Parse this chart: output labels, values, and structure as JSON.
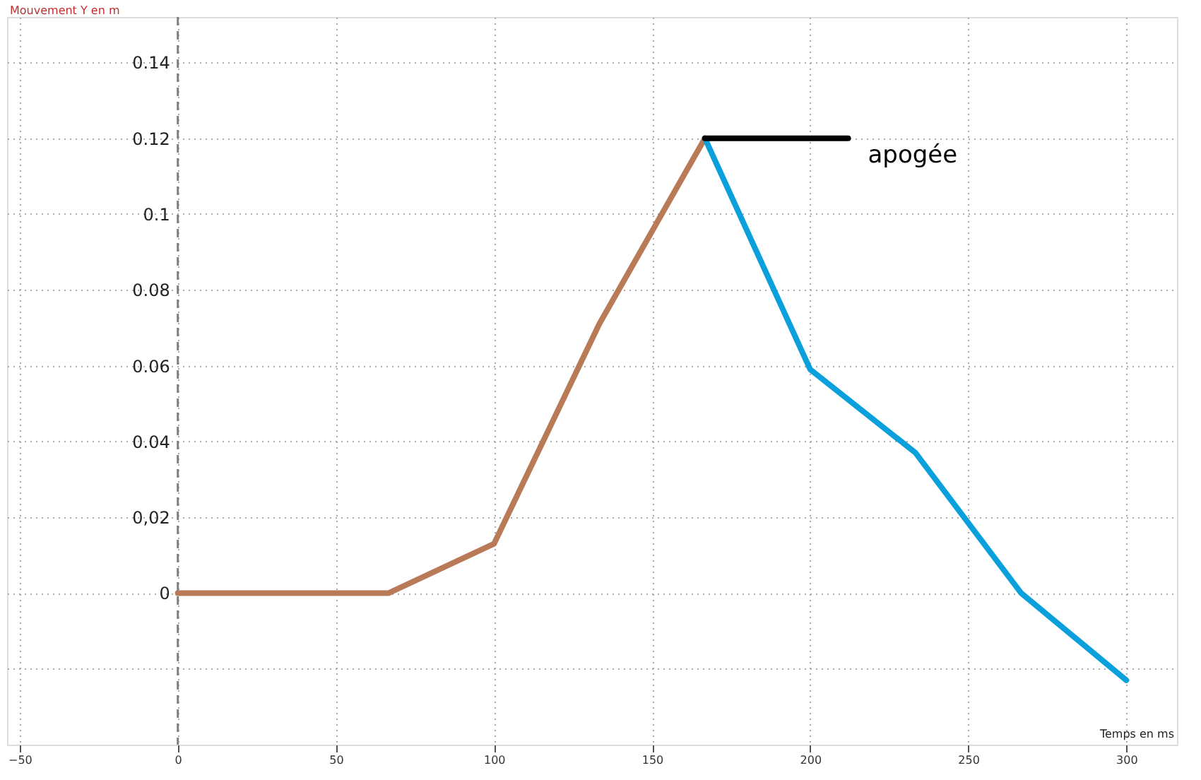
{
  "chart_data": {
    "type": "line",
    "xlabel": "Temps en ms",
    "ylabel": "Mouvement Y en m",
    "xlim": [
      -54,
      316
    ],
    "ylim": [
      -0.04,
      0.152
    ],
    "xticks": [
      -50,
      0,
      50,
      100,
      150,
      200,
      250,
      300
    ],
    "yticks": [
      {
        "value": -0.02,
        "label": null
      },
      0,
      {
        "value": 0.02,
        "label": "0,02"
      },
      0.04,
      0.06,
      0.08,
      0.1,
      0.12,
      0.14
    ],
    "grid": true,
    "marker": "none",
    "line_style": "solid",
    "ref_lines": [
      {
        "axis": "x",
        "value": 0,
        "color": "#808080",
        "line_style": "dashed"
      }
    ],
    "series": [
      {
        "color": "#b87a57",
        "x": [
          0,
          33.3,
          66.7,
          100,
          133.3,
          166.7
        ],
        "values": [
          0,
          0,
          0,
          0.013,
          0.071,
          0.12
        ]
      },
      {
        "color": "#0aa0dc",
        "x": [
          166.7,
          200,
          233.3,
          266.7,
          300
        ],
        "values": [
          0.12,
          0.059,
          0.037,
          0,
          -0.023
        ]
      },
      {
        "color": "#000000",
        "x": [
          166.7,
          212
        ],
        "values": [
          0.12,
          0.12
        ]
      }
    ],
    "annotations": [
      "apogée"
    ]
  }
}
